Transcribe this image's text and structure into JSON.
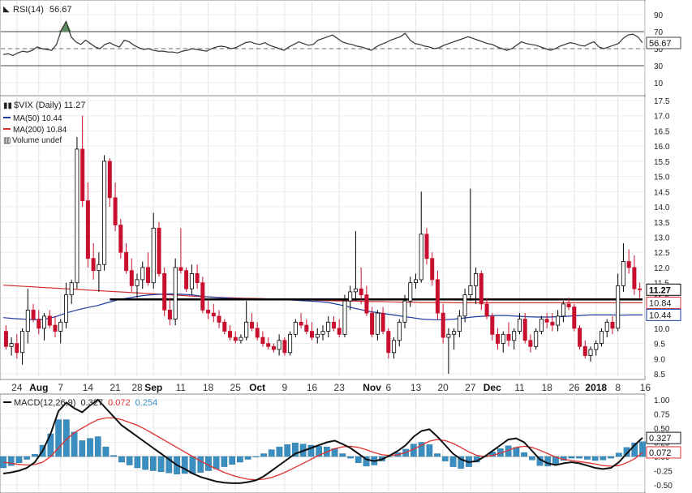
{
  "rsi": {
    "label": "RSI(14)",
    "value_text": "56.67",
    "ticks": [
      "90",
      "70",
      "50",
      "30",
      "10"
    ],
    "tag": "56.67",
    "values": [
      43,
      44,
      42,
      45,
      47,
      46,
      48,
      52,
      50,
      49,
      48,
      55,
      72,
      82,
      64,
      58,
      55,
      60,
      56,
      52,
      50,
      55,
      57,
      54,
      52,
      60,
      58,
      54,
      51,
      49,
      50,
      48,
      47,
      47,
      46,
      46,
      45,
      47,
      48,
      50,
      49,
      48,
      47,
      50,
      52,
      53,
      52,
      50,
      51,
      54,
      57,
      58,
      56,
      55,
      57,
      54,
      52,
      50,
      48,
      52,
      55,
      58,
      56,
      54,
      55,
      60,
      62,
      64,
      66,
      62,
      58,
      56,
      55,
      53,
      52,
      50,
      48,
      52,
      55,
      57,
      60,
      62,
      64,
      68,
      60,
      56,
      55,
      53,
      52,
      50,
      51,
      54,
      56,
      58,
      60,
      62,
      64,
      62,
      60,
      58,
      56,
      55,
      52,
      50,
      48,
      50,
      54,
      58,
      56,
      55,
      54,
      52,
      50,
      48,
      50,
      53,
      55,
      57,
      56,
      54,
      53,
      56,
      58,
      52,
      50,
      52,
      54,
      56,
      62,
      66,
      67,
      64,
      57
    ]
  },
  "price": {
    "labels": {
      "symbol": "$VIX (Daily) 11.27",
      "ma50": "MA(50) 10.44",
      "ma200": "MA(200) 10.84",
      "volume": "Volume undef"
    },
    "ticks": [
      "17.5",
      "17.0",
      "16.5",
      "16.0",
      "15.5",
      "15.0",
      "14.5",
      "14.0",
      "13.5",
      "13.0",
      "12.5",
      "12.0",
      "11.5",
      "11.0",
      "10.5",
      "10.0",
      "9.5",
      "9.0",
      "8.5"
    ],
    "tags": {
      "last": "11.27",
      "ma200": "10.84",
      "ma50": "10.44"
    },
    "colors": {
      "down": "#c8102e",
      "up": "#ffffff",
      "ma50": "#1a3aa0",
      "ma200": "#d23030",
      "support": "#000000"
    },
    "support_level": 10.95,
    "candles": [
      [
        9.9,
        10.1,
        9.3,
        9.4
      ],
      [
        9.4,
        9.7,
        9.1,
        9.5
      ],
      [
        9.5,
        9.8,
        9.0,
        9.2
      ],
      [
        9.2,
        10.0,
        8.8,
        9.9
      ],
      [
        9.9,
        11.3,
        9.5,
        10.6
      ],
      [
        10.6,
        10.8,
        10.2,
        10.3
      ],
      [
        10.3,
        10.6,
        9.8,
        10.0
      ],
      [
        10.0,
        10.5,
        9.6,
        10.4
      ],
      [
        10.4,
        10.6,
        10.0,
        10.1
      ],
      [
        10.1,
        10.4,
        9.7,
        9.9
      ],
      [
        9.9,
        10.3,
        9.5,
        10.2
      ],
      [
        10.2,
        11.5,
        10.0,
        11.1
      ],
      [
        11.1,
        11.6,
        10.8,
        11.5
      ],
      [
        11.5,
        16.3,
        11.3,
        15.9
      ],
      [
        15.9,
        17.0,
        14.0,
        14.2
      ],
      [
        14.2,
        14.8,
        12.0,
        12.3
      ],
      [
        12.3,
        12.8,
        11.6,
        11.9
      ],
      [
        11.9,
        12.5,
        11.2,
        12.1
      ],
      [
        12.1,
        15.7,
        11.9,
        15.5
      ],
      [
        15.5,
        15.6,
        14.0,
        14.3
      ],
      [
        14.3,
        14.8,
        13.2,
        13.4
      ],
      [
        13.4,
        13.6,
        12.3,
        12.5
      ],
      [
        12.5,
        12.8,
        11.8,
        11.9
      ],
      [
        11.9,
        12.3,
        11.2,
        11.4
      ],
      [
        11.4,
        11.8,
        11.0,
        11.6
      ],
      [
        11.6,
        12.2,
        11.3,
        12.0
      ],
      [
        12.0,
        12.5,
        11.4,
        11.5
      ],
      [
        11.5,
        13.8,
        11.3,
        13.3
      ],
      [
        13.3,
        13.5,
        11.7,
        11.8
      ],
      [
        11.8,
        12.0,
        10.4,
        10.6
      ],
      [
        10.6,
        11.0,
        10.1,
        10.3
      ],
      [
        10.3,
        12.3,
        10.1,
        12.0
      ],
      [
        12.0,
        13.3,
        11.8,
        11.9
      ],
      [
        11.9,
        12.0,
        11.2,
        11.3
      ],
      [
        11.3,
        12.1,
        11.1,
        11.8
      ],
      [
        11.8,
        12.1,
        11.3,
        11.5
      ],
      [
        11.5,
        11.7,
        10.5,
        10.6
      ],
      [
        10.6,
        10.9,
        10.3,
        10.5
      ],
      [
        10.5,
        10.8,
        10.2,
        10.4
      ],
      [
        10.4,
        10.6,
        10.0,
        10.2
      ],
      [
        10.2,
        10.3,
        9.8,
        9.9
      ],
      [
        9.9,
        10.1,
        9.6,
        9.7
      ],
      [
        9.7,
        9.9,
        9.5,
        9.6
      ],
      [
        9.6,
        9.8,
        9.5,
        9.7
      ],
      [
        9.7,
        10.9,
        9.6,
        10.2
      ],
      [
        10.2,
        10.5,
        9.9,
        10.0
      ],
      [
        10.0,
        10.2,
        9.6,
        9.7
      ],
      [
        9.7,
        9.9,
        9.4,
        9.5
      ],
      [
        9.5,
        9.7,
        9.3,
        9.4
      ],
      [
        9.4,
        9.5,
        9.2,
        9.3
      ],
      [
        9.3,
        9.8,
        9.1,
        9.6
      ],
      [
        9.6,
        9.7,
        9.1,
        9.2
      ],
      [
        9.2,
        9.9,
        9.1,
        9.8
      ],
      [
        9.8,
        10.3,
        9.7,
        10.2
      ],
      [
        10.2,
        10.5,
        10.0,
        10.1
      ],
      [
        10.1,
        10.3,
        9.8,
        9.9
      ],
      [
        9.9,
        10.2,
        9.6,
        9.7
      ],
      [
        9.7,
        10.0,
        9.5,
        9.8
      ],
      [
        9.8,
        10.1,
        9.6,
        9.9
      ],
      [
        9.9,
        10.4,
        9.7,
        10.2
      ],
      [
        10.2,
        10.4,
        9.9,
        10.0
      ],
      [
        10.0,
        10.3,
        9.7,
        9.8
      ],
      [
        9.8,
        11.1,
        9.7,
        10.9
      ],
      [
        10.9,
        11.4,
        10.6,
        11.2
      ],
      [
        11.2,
        13.2,
        10.9,
        11.3
      ],
      [
        11.3,
        12.0,
        10.8,
        11.1
      ],
      [
        11.1,
        11.4,
        10.4,
        10.5
      ],
      [
        10.5,
        10.7,
        9.7,
        9.8
      ],
      [
        9.8,
        10.6,
        9.6,
        10.5
      ],
      [
        10.5,
        10.7,
        9.8,
        9.9
      ],
      [
        9.9,
        10.0,
        9.0,
        9.2
      ],
      [
        9.2,
        9.7,
        9.0,
        9.6
      ],
      [
        9.6,
        10.3,
        9.4,
        10.2
      ],
      [
        10.2,
        11.1,
        10.0,
        10.9
      ],
      [
        10.9,
        11.7,
        10.7,
        11.5
      ],
      [
        11.5,
        11.8,
        11.3,
        11.6
      ],
      [
        11.6,
        14.5,
        11.5,
        13.1
      ],
      [
        13.1,
        13.3,
        12.1,
        12.3
      ],
      [
        12.3,
        12.5,
        11.4,
        11.6
      ],
      [
        11.6,
        11.9,
        10.3,
        10.5
      ],
      [
        10.5,
        10.8,
        9.5,
        9.7
      ],
      [
        9.7,
        10.0,
        8.5,
        9.8
      ],
      [
        9.8,
        10.0,
        9.3,
        9.9
      ],
      [
        9.9,
        10.6,
        9.7,
        10.4
      ],
      [
        10.4,
        11.3,
        10.2,
        11.1
      ],
      [
        11.1,
        14.6,
        10.9,
        11.4
      ],
      [
        11.4,
        12.0,
        10.8,
        11.8
      ],
      [
        11.8,
        11.9,
        10.6,
        10.8
      ],
      [
        10.8,
        11.0,
        10.3,
        10.4
      ],
      [
        10.4,
        10.5,
        9.6,
        9.8
      ],
      [
        9.8,
        10.0,
        9.3,
        9.5
      ],
      [
        9.5,
        9.9,
        9.2,
        9.8
      ],
      [
        9.8,
        10.2,
        9.4,
        9.6
      ],
      [
        9.6,
        10.0,
        9.3,
        9.9
      ],
      [
        9.9,
        10.5,
        9.8,
        10.3
      ],
      [
        10.3,
        10.5,
        9.5,
        9.6
      ],
      [
        9.6,
        9.8,
        9.2,
        9.4
      ],
      [
        9.4,
        10.0,
        9.3,
        9.9
      ],
      [
        9.9,
        10.4,
        9.8,
        10.3
      ],
      [
        10.3,
        10.5,
        10.0,
        10.2
      ],
      [
        10.2,
        10.5,
        9.9,
        10.1
      ],
      [
        10.1,
        10.6,
        9.9,
        10.4
      ],
      [
        10.4,
        10.9,
        10.2,
        10.8
      ],
      [
        10.8,
        11.0,
        10.6,
        10.7
      ],
      [
        10.7,
        10.8,
        9.9,
        10.0
      ],
      [
        10.0,
        10.1,
        9.3,
        9.4
      ],
      [
        9.4,
        9.6,
        9.0,
        9.1
      ],
      [
        9.1,
        9.4,
        8.9,
        9.3
      ],
      [
        9.3,
        9.6,
        9.1,
        9.5
      ],
      [
        9.5,
        10.0,
        9.4,
        9.9
      ],
      [
        9.9,
        10.3,
        9.7,
        10.2
      ],
      [
        10.2,
        10.4,
        9.8,
        10.0
      ],
      [
        10.0,
        11.8,
        9.9,
        11.4
      ],
      [
        11.4,
        12.8,
        11.2,
        12.2
      ],
      [
        12.2,
        12.6,
        11.8,
        12.0
      ],
      [
        12.0,
        12.4,
        11.1,
        11.3
      ],
      [
        11.3,
        11.5,
        11.0,
        11.27
      ]
    ],
    "ma50": [
      10.35,
      10.32,
      10.3,
      10.28,
      10.3,
      10.38,
      10.5,
      10.6,
      10.68,
      10.75,
      10.85,
      10.94,
      11.0,
      11.06,
      11.1,
      11.12,
      11.13,
      11.12,
      11.1,
      11.05,
      11.02,
      11.0,
      10.98,
      10.97,
      10.96,
      10.95,
      10.95,
      10.94,
      10.92,
      10.9,
      10.88,
      10.85,
      10.78,
      10.7,
      10.62,
      10.55,
      10.5,
      10.45,
      10.4,
      10.35,
      10.3,
      10.28,
      10.28,
      10.3,
      10.34,
      10.38,
      10.4,
      10.42,
      10.42,
      10.4,
      10.38,
      10.37,
      10.37,
      10.38,
      10.4,
      10.42,
      10.44,
      10.44,
      10.44,
      10.43,
      10.44,
      10.44
    ],
    "ma200": [
      11.42,
      11.4,
      11.38,
      11.36,
      11.34,
      11.32,
      11.3,
      11.28,
      11.26,
      11.24,
      11.22,
      11.2,
      11.18,
      11.16,
      11.14,
      11.12,
      11.1,
      11.08,
      11.06,
      11.04,
      11.03,
      11.01,
      11.0,
      10.99,
      10.98,
      10.97,
      10.96,
      10.95,
      10.94,
      10.93,
      10.92,
      10.91,
      10.9,
      10.9,
      10.89,
      10.88,
      10.88,
      10.87,
      10.86,
      10.86,
      10.85,
      10.85,
      10.85,
      10.84,
      10.84,
      10.84,
      10.84,
      10.84,
      10.84,
      10.84,
      10.84,
      10.84,
      10.84,
      10.84,
      10.84,
      10.84,
      10.84,
      10.84,
      10.84,
      10.84,
      10.84,
      10.84
    ]
  },
  "dates": [
    {
      "text": "24",
      "idx": 2
    },
    {
      "text": "Aug",
      "idx": 6,
      "bold": true
    },
    {
      "text": "7",
      "idx": 10
    },
    {
      "text": "14",
      "idx": 15
    },
    {
      "text": "21",
      "idx": 20
    },
    {
      "text": "28",
      "idx": 24
    },
    {
      "text": "Sep",
      "idx": 27,
      "bold": true
    },
    {
      "text": "11",
      "idx": 32
    },
    {
      "text": "18",
      "idx": 37
    },
    {
      "text": "25",
      "idx": 42
    },
    {
      "text": "Oct",
      "idx": 46,
      "bold": true
    },
    {
      "text": "9",
      "idx": 51
    },
    {
      "text": "16",
      "idx": 56
    },
    {
      "text": "23",
      "idx": 61
    },
    {
      "text": "Nov",
      "idx": 67,
      "bold": true
    },
    {
      "text": "6",
      "idx": 70
    },
    {
      "text": "13",
      "idx": 75
    },
    {
      "text": "20",
      "idx": 80
    },
    {
      "text": "27",
      "idx": 85
    },
    {
      "text": "Dec",
      "idx": 89,
      "bold": true
    },
    {
      "text": "11",
      "idx": 94
    },
    {
      "text": "18",
      "idx": 99
    },
    {
      "text": "26",
      "idx": 104
    },
    {
      "text": "2018",
      "idx": 108,
      "bold": true
    },
    {
      "text": "8",
      "idx": 112
    },
    {
      "text": "16",
      "idx": 117
    }
  ],
  "macd": {
    "label": "MACD(12,26,9)",
    "value1": "0.327",
    "value2": "0.072",
    "value3": "0.254",
    "ticks": [
      "1.00",
      "0.75",
      "0.50",
      "0.25",
      "0.00",
      "-0.25",
      "-0.50"
    ],
    "tag1": "0.327",
    "tag2": "0.072",
    "colors": {
      "macd": "#111111",
      "signal": "#e03030",
      "hist": "#3a8fc0"
    },
    "macd_values": [
      -0.3,
      -0.28,
      -0.25,
      -0.2,
      -0.1,
      0.1,
      0.4,
      0.8,
      0.95,
      0.85,
      0.78,
      0.9,
      1.0,
      0.85,
      0.7,
      0.55,
      0.45,
      0.35,
      0.25,
      0.15,
      0.05,
      -0.05,
      -0.15,
      -0.22,
      -0.3,
      -0.36,
      -0.4,
      -0.44,
      -0.46,
      -0.47,
      -0.47,
      -0.45,
      -0.42,
      -0.35,
      -0.25,
      -0.15,
      -0.05,
      0.05,
      0.1,
      0.15,
      0.2,
      0.25,
      0.28,
      0.22,
      0.15,
      0.05,
      -0.05,
      -0.08,
      -0.05,
      0.02,
      0.1,
      0.2,
      0.35,
      0.45,
      0.48,
      0.35,
      0.2,
      0.05,
      -0.05,
      -0.1,
      -0.08,
      0.0,
      0.1,
      0.2,
      0.3,
      0.32,
      0.25,
      0.1,
      -0.05,
      -0.12,
      -0.15,
      -0.12,
      -0.1,
      -0.12,
      -0.16,
      -0.2,
      -0.22,
      -0.2,
      -0.1,
      0.05,
      0.2,
      0.33
    ],
    "signal_values": [
      -0.1,
      -0.12,
      -0.14,
      -0.15,
      -0.14,
      -0.1,
      0.0,
      0.15,
      0.3,
      0.42,
      0.5,
      0.58,
      0.65,
      0.68,
      0.68,
      0.65,
      0.6,
      0.55,
      0.48,
      0.4,
      0.32,
      0.24,
      0.16,
      0.08,
      0.0,
      -0.08,
      -0.15,
      -0.22,
      -0.28,
      -0.33,
      -0.37,
      -0.4,
      -0.41,
      -0.4,
      -0.37,
      -0.32,
      -0.26,
      -0.19,
      -0.12,
      -0.05,
      0.02,
      0.08,
      0.14,
      0.17,
      0.18,
      0.16,
      0.12,
      0.07,
      0.03,
      0.02,
      0.03,
      0.07,
      0.13,
      0.2,
      0.27,
      0.3,
      0.28,
      0.23,
      0.16,
      0.08,
      0.02,
      0.0,
      0.02,
      0.06,
      0.11,
      0.16,
      0.18,
      0.16,
      0.11,
      0.05,
      -0.01,
      -0.05,
      -0.07,
      -0.09,
      -0.11,
      -0.13,
      -0.16,
      -0.17,
      -0.16,
      -0.11,
      -0.04,
      0.07
    ]
  }
}
